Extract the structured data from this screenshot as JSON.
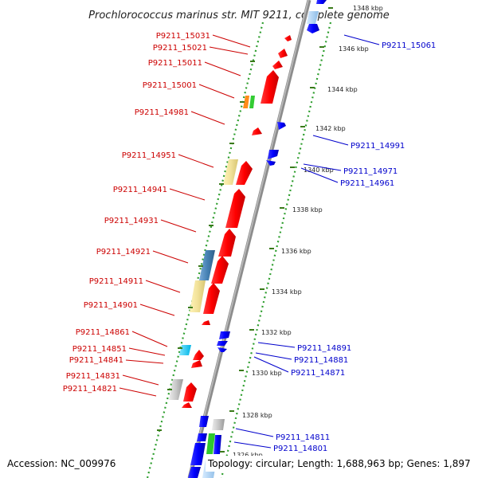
{
  "title": "Prochlorococcus marinus str. MIT 9211, complete genome",
  "accession": "Accession: NC_009976",
  "summary": "Topology: circular; Length: 1,688,963 bp; Genes: 1,897",
  "colors": {
    "forward_label": "#cc0000",
    "reverse_label": "#0000cc",
    "forward_gene": "#ff0000",
    "reverse_gene": "#0000ff",
    "backbone": "#8c8c8c",
    "dotted_ring": "#2e9e2e",
    "tick": "#3a7a1a"
  },
  "scale_ticks": [
    "1348 kbp",
    "1346 kbp",
    "1344 kbp",
    "1342 kbp",
    "1340 kbp",
    "1338 kbp",
    "1336 kbp",
    "1334 kbp",
    "1332 kbp",
    "1330 kbp",
    "1328 kbp",
    "1326 kbp"
  ],
  "forward_gene_labels": [
    "P9211_15031",
    "P9211_15021",
    "P9211_15011",
    "P9211_15001",
    "P9211_14981",
    "P9211_14951",
    "P9211_14941",
    "P9211_14931",
    "P9211_14921",
    "P9211_14911",
    "P9211_14901",
    "P9211_14861",
    "P9211_14851",
    "P9211_14841",
    "P9211_14831",
    "P9211_14821"
  ],
  "reverse_gene_labels": [
    "P9211_15061",
    "P9211_14991",
    "P9211_14971",
    "P9211_14961",
    "P9211_14891",
    "P9211_14881",
    "P9211_14871",
    "P9211_14811",
    "P9211_14801"
  ]
}
